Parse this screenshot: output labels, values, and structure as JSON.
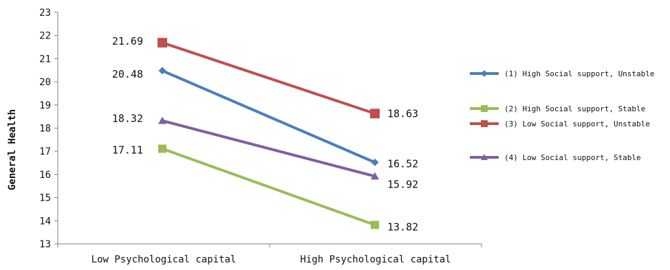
{
  "chart_data": {
    "type": "line",
    "ylabel": "General Health",
    "xlabel": "",
    "ylim": [
      13,
      23
    ],
    "yticks": [
      13,
      14,
      15,
      16,
      17,
      18,
      19,
      20,
      21,
      22,
      23
    ],
    "categories": [
      "Low Psychological capital",
      "High Psychological capital"
    ],
    "grid": false,
    "legend": "right",
    "series": [
      {
        "name": "(1) High Social support, Unstable",
        "color": "#4a7ebb",
        "marker": "diamond",
        "values": [
          20.48,
          16.52
        ],
        "labels": [
          "20.48",
          "16.52"
        ]
      },
      {
        "name": "(2) High Social support, Stable",
        "color": "#9bbb59",
        "marker": "square",
        "values": [
          17.11,
          13.82
        ],
        "labels": [
          "17.11",
          "13.82"
        ]
      },
      {
        "name": "(3) Low Social support, Unstable",
        "color": "#c0504d",
        "marker": "square",
        "values": [
          21.69,
          18.63
        ],
        "labels": [
          "21.69",
          "18.63"
        ]
      },
      {
        "name": "(4) Low Social support, Stable",
        "color": "#7f5f9f",
        "marker": "triangle",
        "values": [
          18.32,
          15.92
        ],
        "labels": [
          "18.32",
          "15.92"
        ]
      }
    ]
  }
}
